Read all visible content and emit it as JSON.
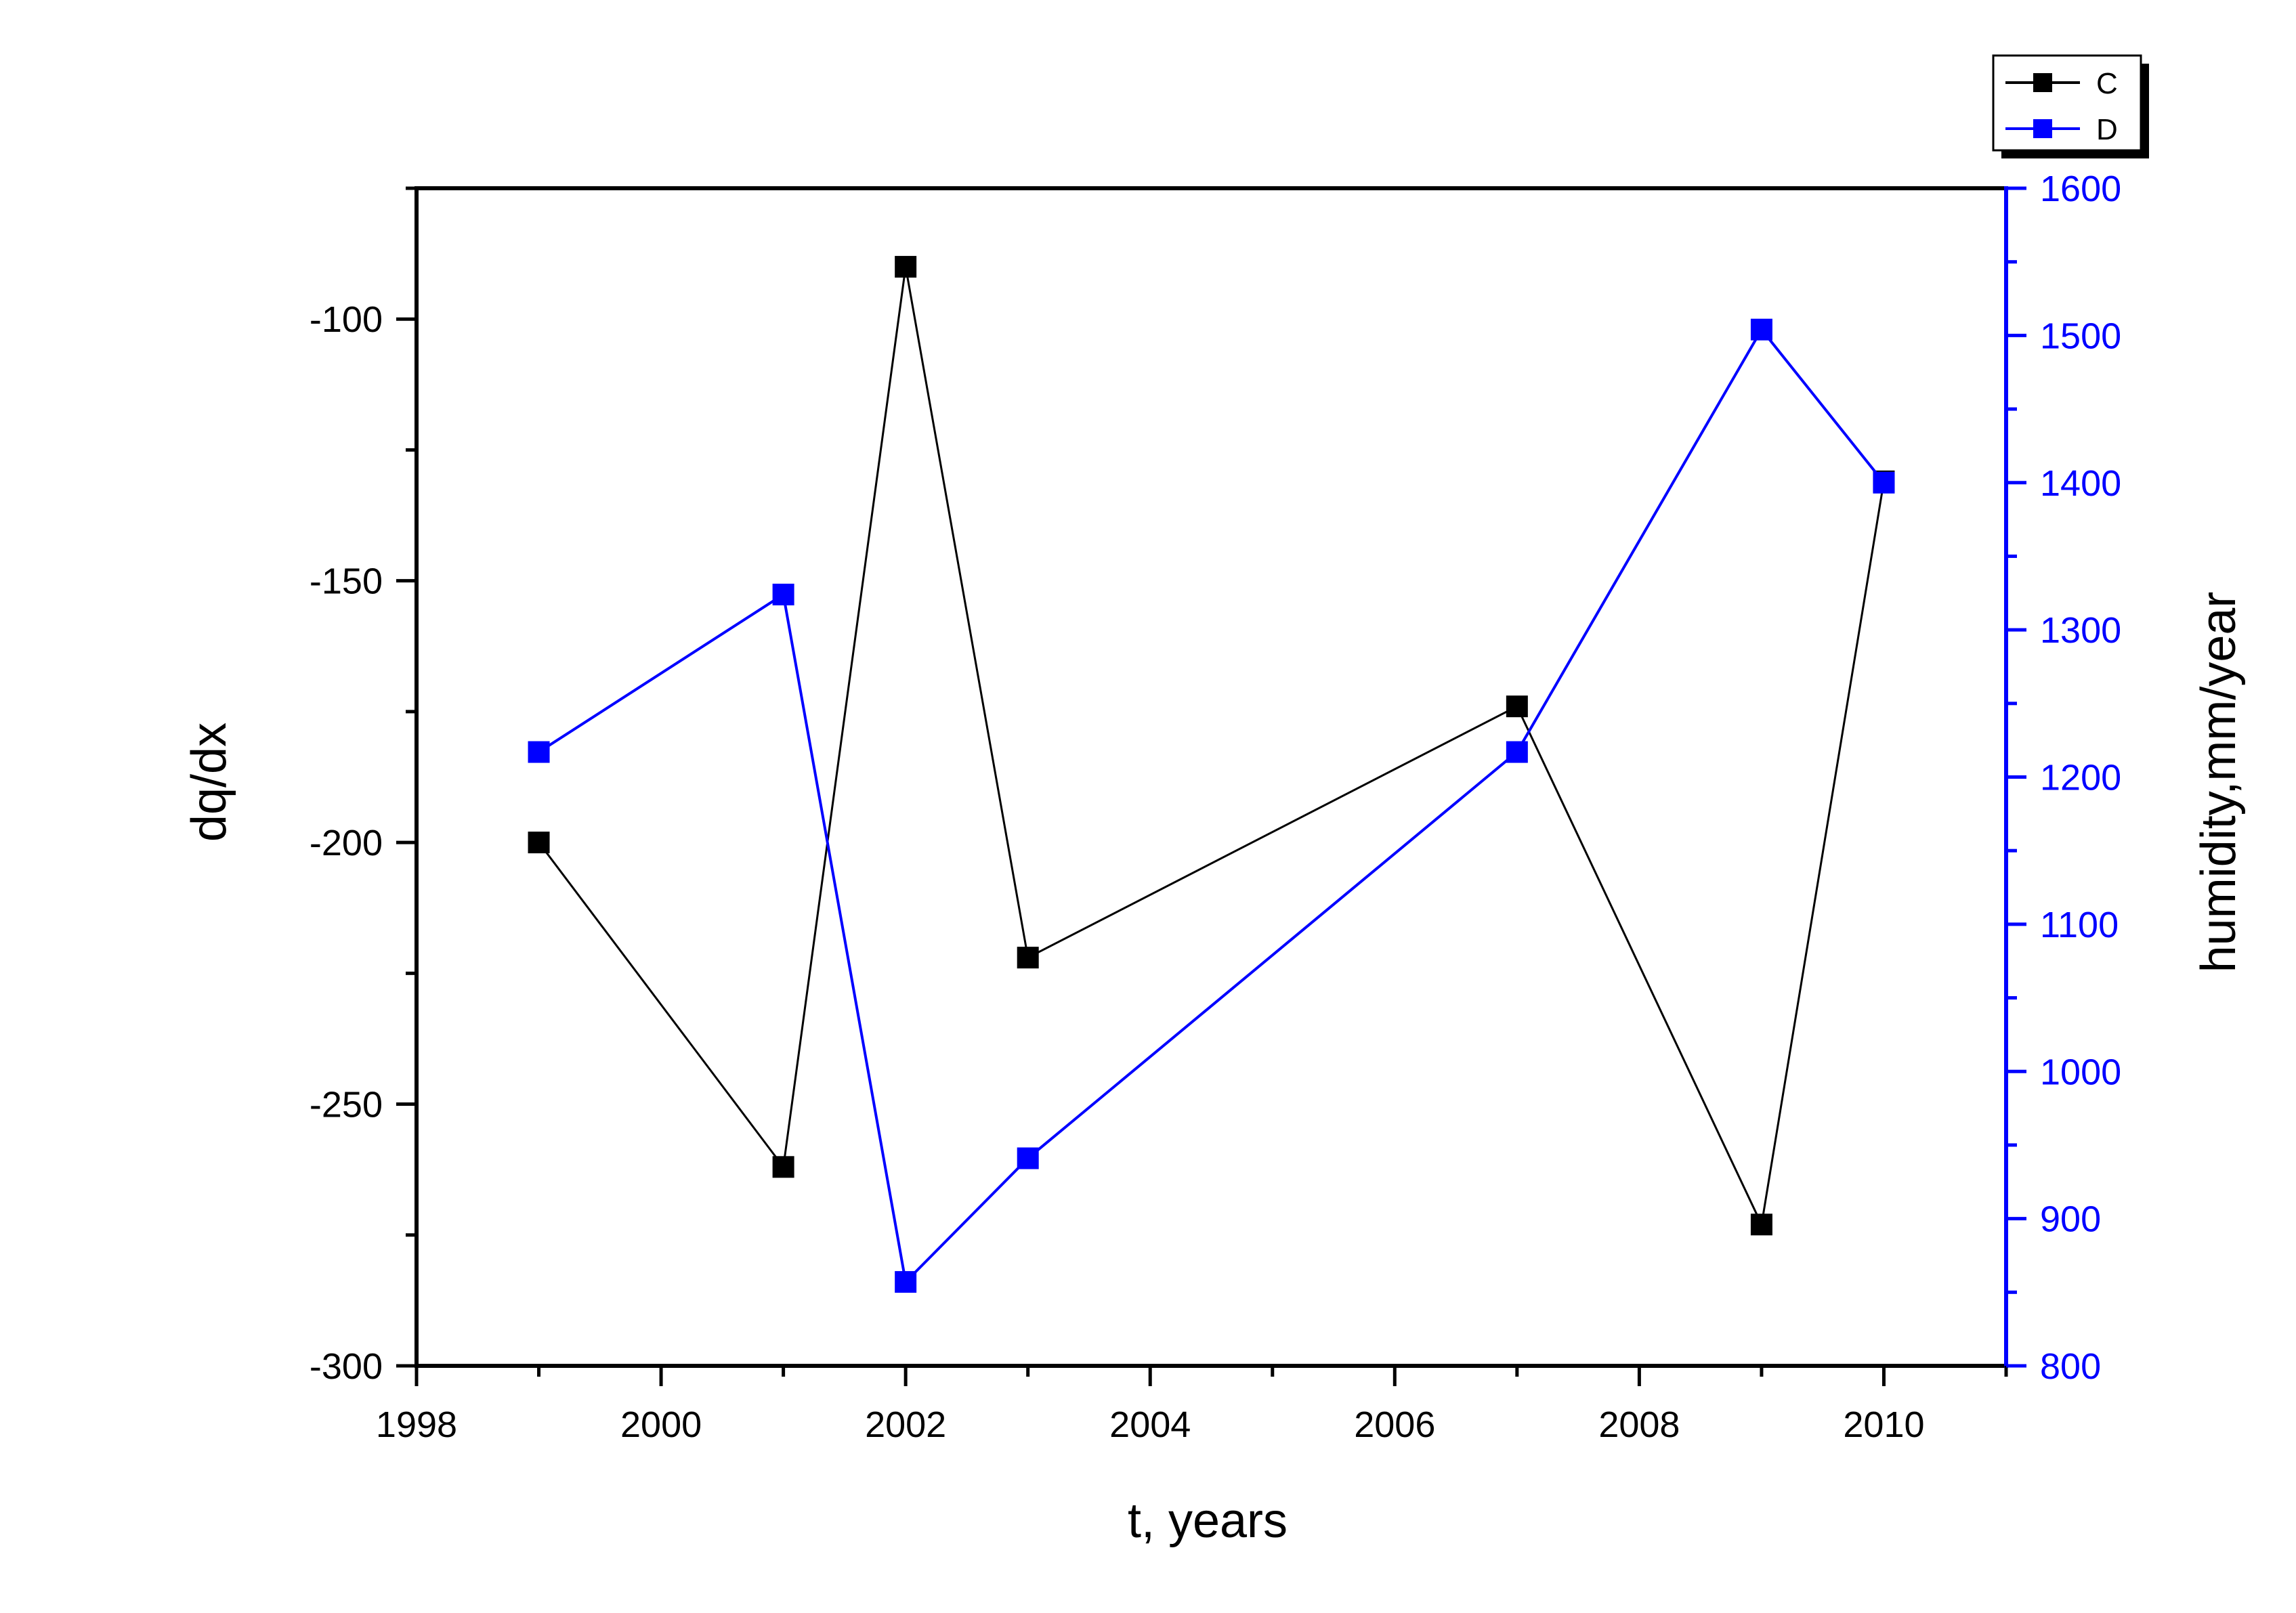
{
  "chart_data": {
    "type": "line",
    "title": "",
    "xlabel": "t, years",
    "ylabel": "dq/dx",
    "ylabel_right": "humidity,mm/year",
    "xlim": [
      1998,
      2011
    ],
    "ylim": [
      -300,
      -75
    ],
    "ylim_right": [
      800,
      1600
    ],
    "x_ticks": [
      1998,
      2000,
      2002,
      2004,
      2006,
      2008,
      2010
    ],
    "y_ticks": [
      -300,
      -250,
      -200,
      -150,
      -100
    ],
    "y_ticks_right": [
      800,
      900,
      1000,
      1100,
      1200,
      1300,
      1400,
      1500,
      1600
    ],
    "grid": false,
    "legend_position": "top-right, outside plot",
    "series": [
      {
        "name": "C",
        "axis": "left",
        "color": "#000000",
        "marker": "square",
        "x": [
          1999,
          2001,
          2002,
          2003,
          2007,
          2009,
          2010
        ],
        "y": [
          -200,
          -262,
          -90,
          -222,
          -174,
          -273,
          -131
        ]
      },
      {
        "name": "D",
        "axis": "right",
        "color": "#0000ff",
        "marker": "square",
        "x": [
          1999,
          2001,
          2002,
          2003,
          2007,
          2009,
          2010
        ],
        "y": [
          1217,
          1324,
          857,
          941,
          1217,
          1504,
          1400
        ]
      }
    ]
  }
}
